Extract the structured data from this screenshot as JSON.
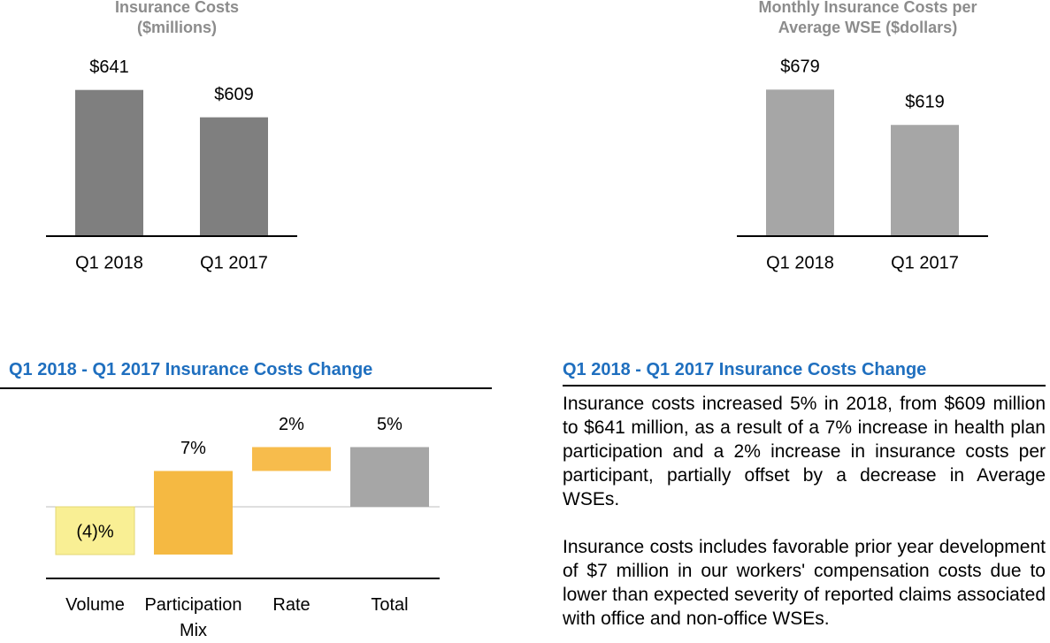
{
  "chart_data": [
    {
      "type": "bar",
      "title": [
        "Insurance Costs",
        "($millions)"
      ],
      "categories": [
        "Q1 2018",
        "Q1 2017"
      ],
      "values": [
        641,
        609
      ],
      "value_labels": [
        "$641",
        "$609"
      ],
      "color": "#7f7f7f",
      "ylim": [
        470,
        650
      ]
    },
    {
      "type": "bar",
      "title": [
        "Monthly Insurance Costs per",
        "Average WSE ($dollars)"
      ],
      "categories": [
        "Q1 2018",
        "Q1 2017"
      ],
      "values": [
        679,
        619
      ],
      "value_labels": [
        "$679",
        "$619"
      ],
      "color": "#a6a6a6",
      "ylim": [
        430,
        690
      ]
    },
    {
      "type": "waterfall",
      "title": "Q1 2018 - Q1 2017 Insurance Costs Change",
      "categories": [
        "Volume",
        "Participation Mix",
        "Rate",
        "Total"
      ],
      "values": [
        -4,
        7,
        2,
        5
      ],
      "value_labels": [
        "(4)%",
        "7%",
        "2%",
        "5%"
      ],
      "colors": [
        "#f9ef94",
        "#f5b942",
        "#f7bc4c",
        "#a6a6a6"
      ],
      "total_last": true,
      "ylim": [
        -6,
        6
      ]
    }
  ],
  "text_panel": {
    "title": "Q1 2018 - Q1 2017 Insurance Costs Change",
    "paragraphs": [
      "Insurance costs increased 5% in 2018, from $609 million to $641 million, as a result of a 7% increase in health plan participation and a 2% increase in insurance costs per participant, partially offset by a decrease in Average WSEs.",
      "Insurance costs includes favorable prior year development of $7 million in our workers' compensation costs due to lower than expected severity of reported claims associated with office and non-office WSEs."
    ]
  }
}
